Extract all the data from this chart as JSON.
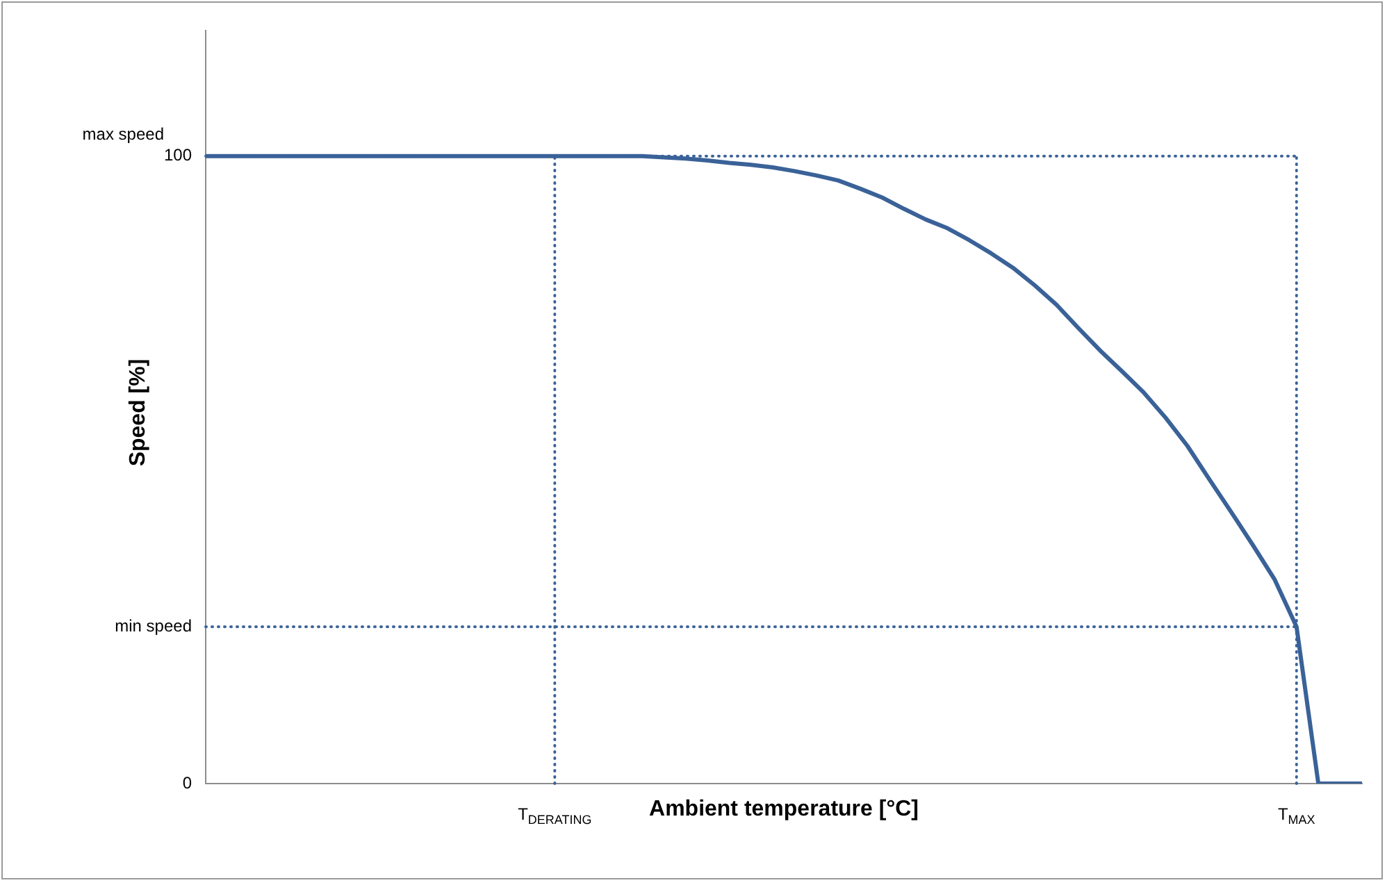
{
  "chart_data": {
    "type": "line",
    "xlabel": "Ambient temperature [°C]",
    "ylabel": "Speed [%]",
    "categories": [
      null,
      null,
      null,
      null,
      null,
      null,
      null,
      null,
      null,
      null,
      null,
      null,
      null,
      null,
      null,
      null,
      "T$_{DERATING}$",
      null,
      null,
      null,
      null,
      null,
      null,
      null,
      null,
      null,
      null,
      null,
      null,
      null,
      null,
      null,
      null,
      null,
      null,
      null,
      null,
      null,
      null,
      null,
      null,
      null,
      null,
      null,
      null,
      null,
      null,
      null,
      null,
      null,
      "T$_{MAX}$",
      null,
      null,
      null
    ],
    "series": [
      {
        "color": "#3a6298",
        "values": [
          100,
          100,
          100,
          100,
          100,
          100,
          100,
          100,
          100,
          100,
          100,
          100,
          100,
          100,
          100,
          100,
          100,
          100,
          100,
          100,
          100,
          99.8,
          99.6,
          99.3,
          98.9,
          98.6,
          98.2,
          97.6,
          96.9,
          96.1,
          94.8,
          93.4,
          91.6,
          89.9,
          88.5,
          86.6,
          84.5,
          82.2,
          79.4,
          76.3,
          72.6,
          69.0,
          65.7,
          62.3,
          58.3,
          53.8,
          48.5,
          43.3,
          38,
          32.5,
          25,
          0,
          0,
          0
        ]
      }
    ],
    "ylim": [
      0,
      120
    ],
    "yticks": [
      0,
      {
        "value": 25,
        "label": "min speed"
      },
      100
    ],
    "ref_lines": [
      {
        "axis": "y",
        "value": 100,
        "label": "max speed",
        "color": "#3a6298",
        "line_style": "dotted"
      },
      {
        "axis": "y",
        "value": 25,
        "color": "#3a6298",
        "line_style": "dotted"
      },
      {
        "axis": "x",
        "value": "T$_{DERATING}$",
        "color": "#3a6298",
        "line_style": "dotted"
      },
      {
        "axis": "x",
        "value": "T$_{MAX}$",
        "color": "#3a6298",
        "line_style": "dotted"
      }
    ],
    "grid": false,
    "legend": false,
    "marker": "none",
    "line_style": "solid"
  }
}
